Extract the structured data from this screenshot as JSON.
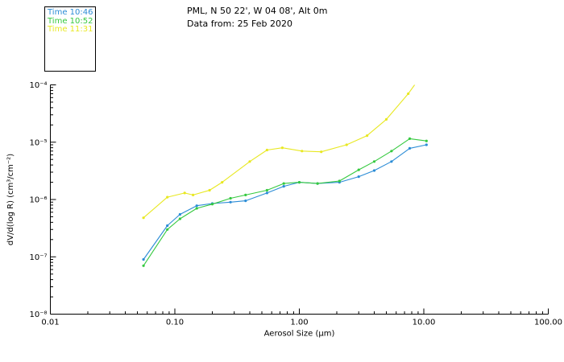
{
  "chart_data": {
    "type": "line",
    "title": "PML, N 50 22', W 04 08', Alt 0m",
    "subtitle": "Data from: 25 Feb 2020",
    "xlabel": "Aerosol Size (μm)",
    "ylabel": "dV/d(log R) (cm³/cm⁻²)",
    "xscale": "log",
    "yscale": "log",
    "xlim": [
      0.01,
      100
    ],
    "ylim": [
      1e-08,
      0.0001
    ],
    "grid": false,
    "axis_color": "#000000",
    "x_ticks": {
      "values": [
        0.01,
        0.1,
        1,
        10,
        100
      ],
      "labels": [
        "0.01",
        "0.10",
        "1.00",
        "10.00",
        "100.00"
      ]
    },
    "y_ticks": {
      "values": [
        1e-08,
        1e-07,
        1e-06,
        1e-05,
        0.0001
      ],
      "labels": [
        "10⁻⁸",
        "10⁻⁷",
        "10⁻⁶",
        "10⁻⁵",
        "10⁻⁴"
      ]
    },
    "legend": {
      "position": "top-left-outside",
      "entries": [
        {
          "label": "Time 10:46",
          "color": "#2b8cd6"
        },
        {
          "label": "Time 10:52",
          "color": "#35c93f"
        },
        {
          "label": "Time 11:31",
          "color": "#e8e821"
        }
      ]
    },
    "series": [
      {
        "name": "Time 10:46",
        "color": "#2b8cd6",
        "points": [
          [
            0.056,
            9e-08
          ],
          [
            0.087,
            3.5e-07
          ],
          [
            0.11,
            5.5e-07
          ],
          [
            0.15,
            7.8e-07
          ],
          [
            0.2,
            8.5e-07
          ],
          [
            0.28,
            9e-07
          ],
          [
            0.37,
            9.5e-07
          ],
          [
            0.55,
            1.3e-06
          ],
          [
            0.75,
            1.7e-06
          ],
          [
            1.0,
            2e-06
          ],
          [
            1.4,
            1.9e-06
          ],
          [
            2.1,
            2e-06
          ],
          [
            3.0,
            2.5e-06
          ],
          [
            4.0,
            3.2e-06
          ],
          [
            5.5,
            4.6e-06
          ],
          [
            7.7,
            7.8e-06
          ],
          [
            10.5,
            9e-06
          ]
        ]
      },
      {
        "name": "Time 10:52",
        "color": "#35c93f",
        "points": [
          [
            0.056,
            7e-08
          ],
          [
            0.087,
            3e-07
          ],
          [
            0.11,
            4.6e-07
          ],
          [
            0.15,
            7e-07
          ],
          [
            0.2,
            8.3e-07
          ],
          [
            0.28,
            1.05e-06
          ],
          [
            0.37,
            1.2e-06
          ],
          [
            0.55,
            1.45e-06
          ],
          [
            0.75,
            1.9e-06
          ],
          [
            1.0,
            2e-06
          ],
          [
            1.4,
            1.9e-06
          ],
          [
            2.1,
            2.1e-06
          ],
          [
            3.0,
            3.3e-06
          ],
          [
            4.0,
            4.6e-06
          ],
          [
            5.5,
            7e-06
          ],
          [
            7.7,
            1.15e-05
          ],
          [
            10.5,
            1.05e-05
          ]
        ]
      },
      {
        "name": "Time 11:31",
        "color": "#e8e821",
        "points": [
          [
            0.056,
            4.8e-07
          ],
          [
            0.087,
            1.1e-06
          ],
          [
            0.12,
            1.3e-06
          ],
          [
            0.14,
            1.2e-06
          ],
          [
            0.19,
            1.45e-06
          ],
          [
            0.24,
            2e-06
          ],
          [
            0.4,
            4.6e-06
          ],
          [
            0.55,
            7.3e-06
          ],
          [
            0.73,
            8e-06
          ],
          [
            1.05,
            7e-06
          ],
          [
            1.5,
            6.8e-06
          ],
          [
            2.4,
            9e-06
          ],
          [
            3.5,
            1.3e-05
          ],
          [
            5.0,
            2.5e-05
          ],
          [
            7.5,
            7e-05
          ],
          [
            8.7,
            0.00011
          ]
        ]
      }
    ]
  }
}
